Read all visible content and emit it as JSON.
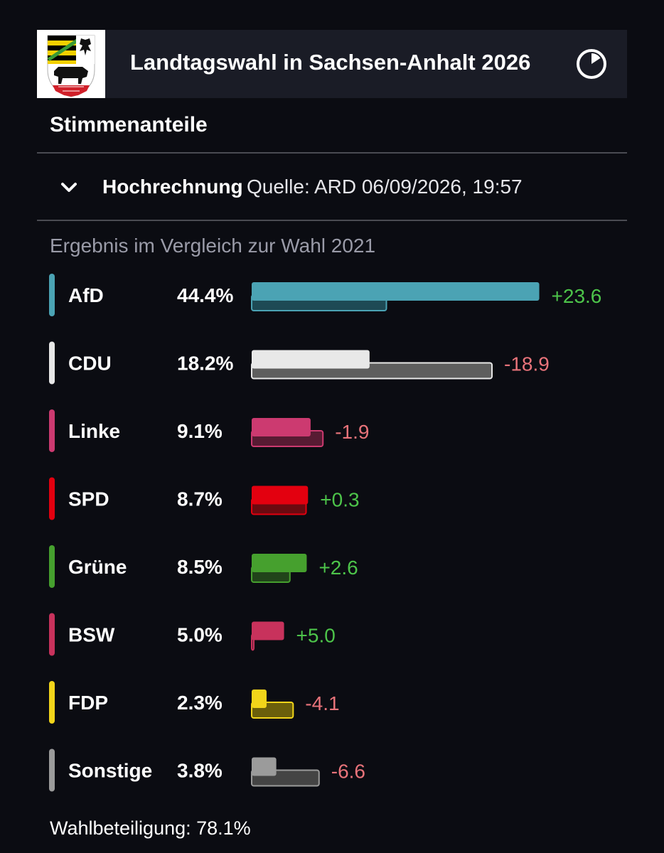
{
  "header": {
    "title": "Landtagswahl in Sachsen-Anhalt 2026",
    "crest_icon": "sachsen-anhalt-coat-of-arms",
    "clock_icon": "timer-icon"
  },
  "section": {
    "title": "Stimmenanteile"
  },
  "projection": {
    "label": "Hochrechnung",
    "source": "Quelle: ARD 06/09/2026, 19:57"
  },
  "subtitle": "Ergebnis im Vergleich zur Wahl 2021",
  "chart_data": {
    "type": "bar",
    "orientation": "horizontal",
    "title": "",
    "xlabel": "",
    "ylabel": "",
    "categories": [
      "AfD",
      "CDU",
      "Linke",
      "SPD",
      "Grüne",
      "BSW",
      "FDP",
      "Sonstige"
    ],
    "series": [
      {
        "values": [
          44.4,
          18.2,
          9.1,
          8.7,
          8.5,
          5.0,
          2.3,
          3.8
        ],
        "labels": [
          "44.4%",
          "18.2%",
          "9.1%",
          "8.7%",
          "8.5%",
          "5.0%",
          "2.3%",
          "3.8%"
        ]
      },
      {
        "values": [
          20.8,
          37.1,
          11.0,
          8.4,
          5.9,
          0.0,
          6.4,
          10.4
        ]
      }
    ],
    "diffs": [
      "+23.6",
      "-18.9",
      "-1.9",
      "+0.3",
      "+2.6",
      "+5.0",
      "-4.1",
      "-6.6"
    ],
    "colors": [
      "#4ba3b4",
      "#e8e8e8",
      "#cc3a70",
      "#e3000f",
      "#46a02e",
      "#c8325c",
      "#f2d51a",
      "#9b9b9b"
    ],
    "prev_colors": [
      "#1e4a55",
      "#5e5e5e",
      "#581b33",
      "#6b0a10",
      "#21441a",
      "#5c1c30",
      "#6b5f0b",
      "#444444"
    ],
    "diff_colors": {
      "positive": "#4dc44a",
      "negative": "#e8737a"
    },
    "xlim": [
      0,
      45
    ]
  },
  "turnout": "Wahlbeteiligung: 78.1%"
}
